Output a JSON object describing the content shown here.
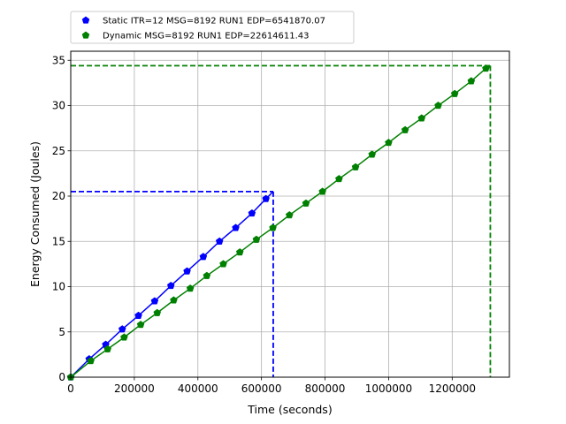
{
  "chart_data": {
    "type": "line",
    "xlabel": "Time (seconds)",
    "ylabel": "Energy Consumed (Joules)",
    "xlim": [
      0,
      1380000
    ],
    "ylim": [
      0,
      36
    ],
    "xticks": [
      0,
      200000,
      400000,
      600000,
      800000,
      1000000,
      1200000
    ],
    "yticks": [
      0,
      5,
      10,
      15,
      20,
      25,
      30,
      35
    ],
    "grid": true,
    "legend_position": "top-left, above axes",
    "series": [
      {
        "name": "Static ITR=12 MSG=8192 RUN1 EDP=6541870.07",
        "color": "#0000ff",
        "marker": "pentagon",
        "x": [
          0,
          58000,
          110000,
          162000,
          213000,
          264000,
          315000,
          366000,
          417000,
          468000,
          519000,
          570000,
          614000
        ],
        "y": [
          0,
          2.0,
          3.6,
          5.3,
          6.8,
          8.4,
          10.1,
          11.7,
          13.3,
          15.0,
          16.5,
          18.1,
          19.7
        ],
        "end_x": 637000,
        "end_y": 20.5
      },
      {
        "name": "Dynamic MSG=8192 RUN1 EDP=22614611.43",
        "color": "#008000",
        "marker": "pentagon",
        "x": [
          0,
          63000,
          116000,
          168000,
          220000,
          272000,
          324000,
          376000,
          428000,
          480000,
          532000,
          584000,
          636000,
          688000,
          740000,
          792000,
          844000,
          896000,
          948000,
          1000000,
          1052000,
          1104000,
          1156000,
          1208000,
          1260000,
          1306000
        ],
        "y": [
          0,
          1.8,
          3.1,
          4.4,
          5.8,
          7.1,
          8.5,
          9.8,
          11.2,
          12.5,
          13.8,
          15.2,
          16.5,
          17.9,
          19.2,
          20.5,
          21.9,
          23.2,
          24.6,
          25.9,
          27.3,
          28.6,
          30.0,
          31.3,
          32.7,
          34.1
        ],
        "end_x": 1320000,
        "end_y": 34.4
      }
    ]
  }
}
